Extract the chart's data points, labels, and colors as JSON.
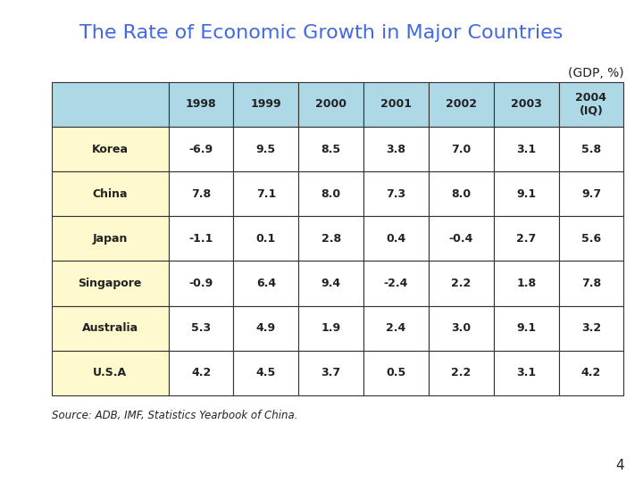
{
  "title": "The Rate of Economic Growth in Major Countries",
  "subtitle": "(GDP, %)",
  "columns": [
    "",
    "1998",
    "1999",
    "2000",
    "2001",
    "2002",
    "2003",
    "2004\n(IQ)"
  ],
  "rows": [
    [
      "Korea",
      "-6.9",
      "9.5",
      "8.5",
      "3.8",
      "7.0",
      "3.1",
      "5.8"
    ],
    [
      "China",
      "7.8",
      "7.1",
      "8.0",
      "7.3",
      "8.0",
      "9.1",
      "9.7"
    ],
    [
      "Japan",
      "-1.1",
      "0.1",
      "2.8",
      "0.4",
      "-0.4",
      "2.7",
      "5.6"
    ],
    [
      "Singapore",
      "-0.9",
      "6.4",
      "9.4",
      "-2.4",
      "2.2",
      "1.8",
      "7.8"
    ],
    [
      "Australia",
      "5.3",
      "4.9",
      "1.9",
      "2.4",
      "3.0",
      "9.1",
      "3.2"
    ],
    [
      "U.S.A",
      "4.2",
      "4.5",
      "3.7",
      "0.5",
      "2.2",
      "3.1",
      "4.2"
    ]
  ],
  "header_bg": "#ADD8E6",
  "country_bg": "#FFFACD",
  "data_bg": "#FFFFFF",
  "border_color": "#333333",
  "title_color": "#4169E1",
  "text_color": "#222222",
  "source_text": "Source: ADB, IMF, Statistics Yearbook of China.",
  "page_number": "4",
  "background_color": "#FFFFFF"
}
